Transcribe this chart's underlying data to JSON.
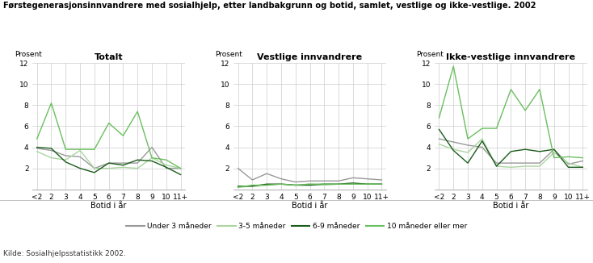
{
  "title": "Førstegenerasjonsinnvandrere med sosialhjelp, etter landbakgrunn og botid, samlet, vestlige og ikke-vestlige. 2002",
  "source": "Kilde: Sosialhjelpsstatistikk 2002.",
  "x_labels": [
    "<2",
    "2",
    "3",
    "4",
    "5",
    "6",
    "7",
    "8",
    "9",
    "10",
    "11+"
  ],
  "x_label": "Botid i år",
  "y_label": "Prosent",
  "ylim": [
    0,
    12
  ],
  "yticks": [
    0,
    2,
    4,
    6,
    8,
    10,
    12
  ],
  "panels": [
    "Totalt",
    "Vestlige innvandrere",
    "Ikke-vestlige innvandrere"
  ],
  "series": {
    "under3": {
      "label": "Under 3 måneder",
      "color": "#999999",
      "totalt": [
        3.9,
        3.7,
        3.2,
        3.1,
        2.0,
        2.5,
        2.5,
        2.5,
        4.0,
        2.0,
        2.0
      ],
      "vestlige": [
        2.0,
        0.9,
        1.5,
        1.0,
        0.7,
        0.8,
        0.8,
        0.8,
        1.1,
        1.0,
        0.9
      ],
      "ikke_vestlige": [
        4.8,
        4.5,
        4.2,
        4.0,
        2.5,
        2.5,
        2.5,
        2.5,
        3.8,
        2.4,
        2.7
      ]
    },
    "s35": {
      "label": "3-5 måneder",
      "color": "#aad4a0",
      "totalt": [
        3.6,
        3.0,
        2.8,
        3.7,
        2.0,
        2.0,
        2.1,
        2.0,
        3.0,
        2.3,
        2.0
      ],
      "vestlige": [
        0.2,
        0.3,
        0.4,
        0.5,
        0.4,
        0.5,
        0.4,
        0.5,
        0.5,
        0.5,
        0.5
      ],
      "ikke_vestlige": [
        4.3,
        3.8,
        3.5,
        4.8,
        2.2,
        2.1,
        2.2,
        2.2,
        3.5,
        2.5,
        2.1
      ]
    },
    "s69": {
      "label": "6-9 måneder",
      "color": "#1a5c1a",
      "totalt": [
        4.0,
        3.9,
        2.6,
        2.0,
        1.6,
        2.5,
        2.3,
        2.8,
        2.7,
        2.1,
        1.4
      ],
      "vestlige": [
        0.3,
        0.3,
        0.5,
        0.5,
        0.4,
        0.4,
        0.5,
        0.5,
        0.6,
        0.5,
        0.5
      ],
      "ikke_vestlige": [
        5.7,
        3.7,
        2.5,
        4.6,
        2.2,
        3.6,
        3.8,
        3.6,
        3.8,
        2.1,
        2.1
      ]
    },
    "s10plus": {
      "label": "10 måneder eller mer",
      "color": "#6abf5e",
      "totalt": [
        4.8,
        8.2,
        3.8,
        3.8,
        3.8,
        6.3,
        5.1,
        7.4,
        3.0,
        2.8,
        2.0
      ],
      "vestlige": [
        0.2,
        0.4,
        0.4,
        0.5,
        0.4,
        0.5,
        0.5,
        0.5,
        0.5,
        0.5,
        0.5
      ],
      "ikke_vestlige": [
        6.8,
        11.7,
        4.8,
        5.8,
        5.8,
        9.5,
        7.5,
        9.5,
        3.0,
        3.1,
        3.0
      ]
    }
  },
  "bg_color": "#ffffff",
  "grid_color": "#cccccc"
}
